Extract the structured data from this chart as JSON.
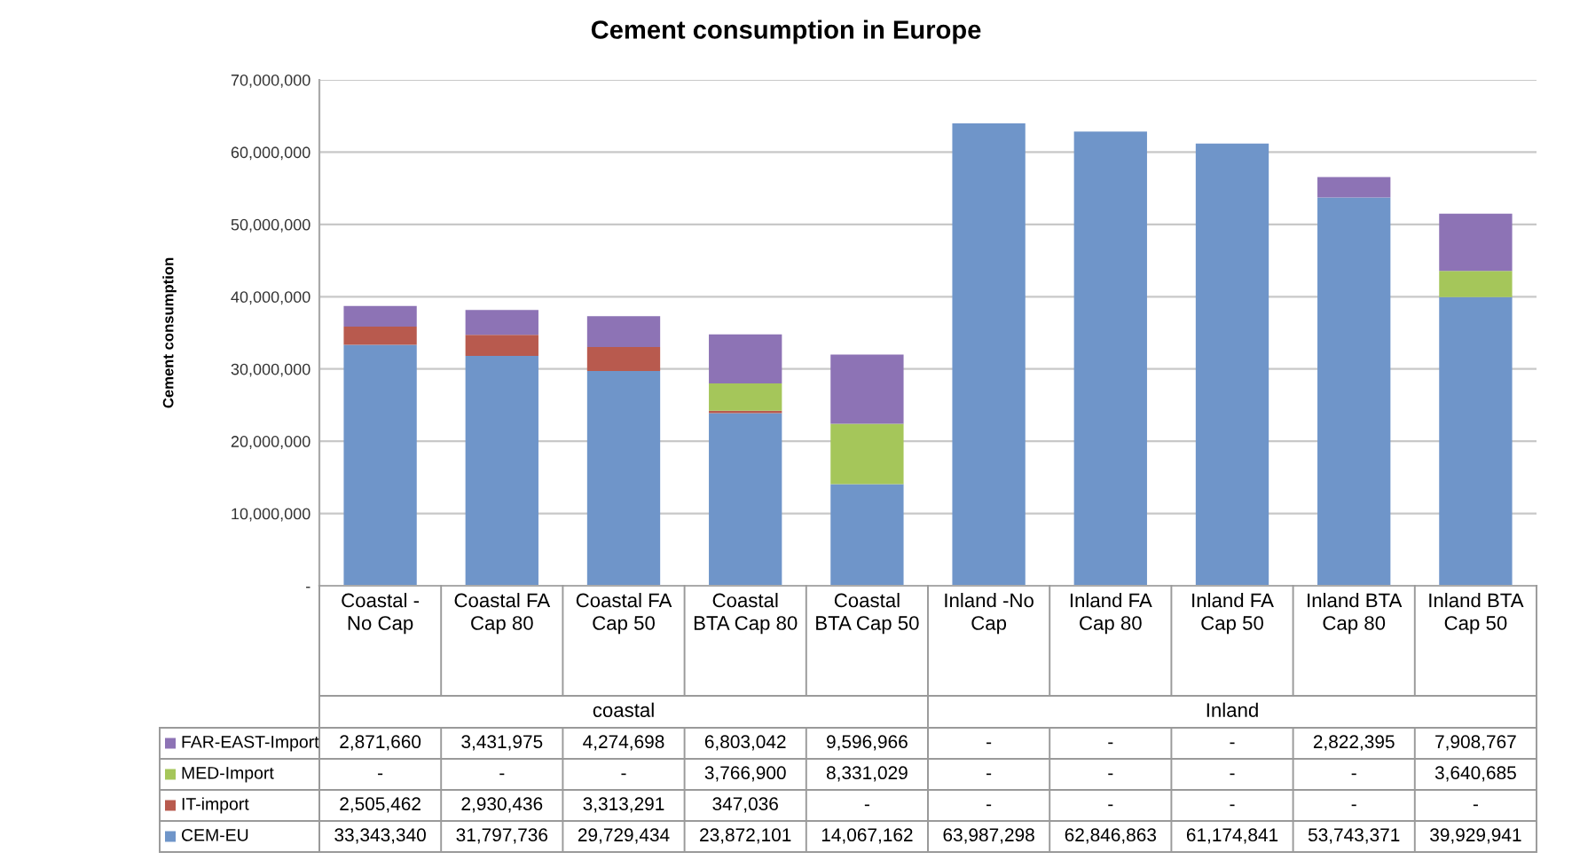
{
  "chart_data": {
    "type": "bar",
    "stacked": true,
    "title": "Cement consumption in Europe",
    "ylabel": "Cement consumption",
    "categories": [
      "Coastal - No Cap",
      "Coastal FA Cap 80",
      "Coastal FA Cap 50",
      "Coastal BTA Cap 80",
      "Coastal BTA Cap 50",
      "Inland -No Cap",
      "Inland FA Cap 80",
      "Inland FA Cap 50",
      "Inland BTA Cap 80",
      "Inland BTA Cap 50"
    ],
    "series": [
      {
        "name": "CEM-EU",
        "color": "#6f95c9",
        "values": [
          33343340,
          31797736,
          29729434,
          23872101,
          14067162,
          63987298,
          62846863,
          61174841,
          53743371,
          39929941
        ],
        "value_labels": [
          "33,343,340",
          "31,797,736",
          "29,729,434",
          "23,872,101",
          "14,067,162",
          "63,987,298",
          "62,846,863",
          "61,174,841",
          "53,743,371",
          "39,929,941"
        ]
      },
      {
        "name": "IT-import",
        "color": "#b85a4e",
        "values": [
          2505462,
          2930436,
          3313291,
          347036,
          null,
          null,
          null,
          null,
          null,
          null
        ],
        "value_labels": [
          "2,505,462",
          "2,930,436",
          "3,313,291",
          "347,036",
          "-",
          "-",
          "-",
          "-",
          "-",
          "-"
        ]
      },
      {
        "name": "MED-Import",
        "color": "#a5c65a",
        "values": [
          null,
          null,
          null,
          3766900,
          8331029,
          null,
          null,
          null,
          null,
          3640685
        ],
        "value_labels": [
          "-",
          "-",
          "-",
          "3,766,900",
          "8,331,029",
          "-",
          "-",
          "-",
          "-",
          "3,640,685"
        ]
      },
      {
        "name": "FAR-EAST-Import",
        "color": "#8d73b5",
        "values": [
          2871660,
          3431975,
          4274698,
          6803042,
          9596966,
          null,
          null,
          null,
          2822395,
          7908767
        ],
        "value_labels": [
          "2,871,660",
          "3,431,975",
          "4,274,698",
          "6,803,042",
          "9,596,966",
          "-",
          "-",
          "-",
          "2,822,395",
          "7,908,767"
        ]
      }
    ],
    "ylim": [
      0,
      70000000
    ],
    "yticks": [
      {
        "value": 0,
        "label": "-"
      },
      {
        "value": 10000000,
        "label": "10,000,000"
      },
      {
        "value": 20000000,
        "label": "20,000,000"
      },
      {
        "value": 30000000,
        "label": "30,000,000"
      },
      {
        "value": 40000000,
        "label": "40,000,000"
      },
      {
        "value": 50000000,
        "label": "50,000,000"
      },
      {
        "value": 60000000,
        "label": "60,000,000"
      },
      {
        "value": 70000000,
        "label": "70,000,000"
      }
    ],
    "grid": "y",
    "legend": "bottom",
    "annotations": [
      "coastal",
      "Inland"
    ]
  }
}
